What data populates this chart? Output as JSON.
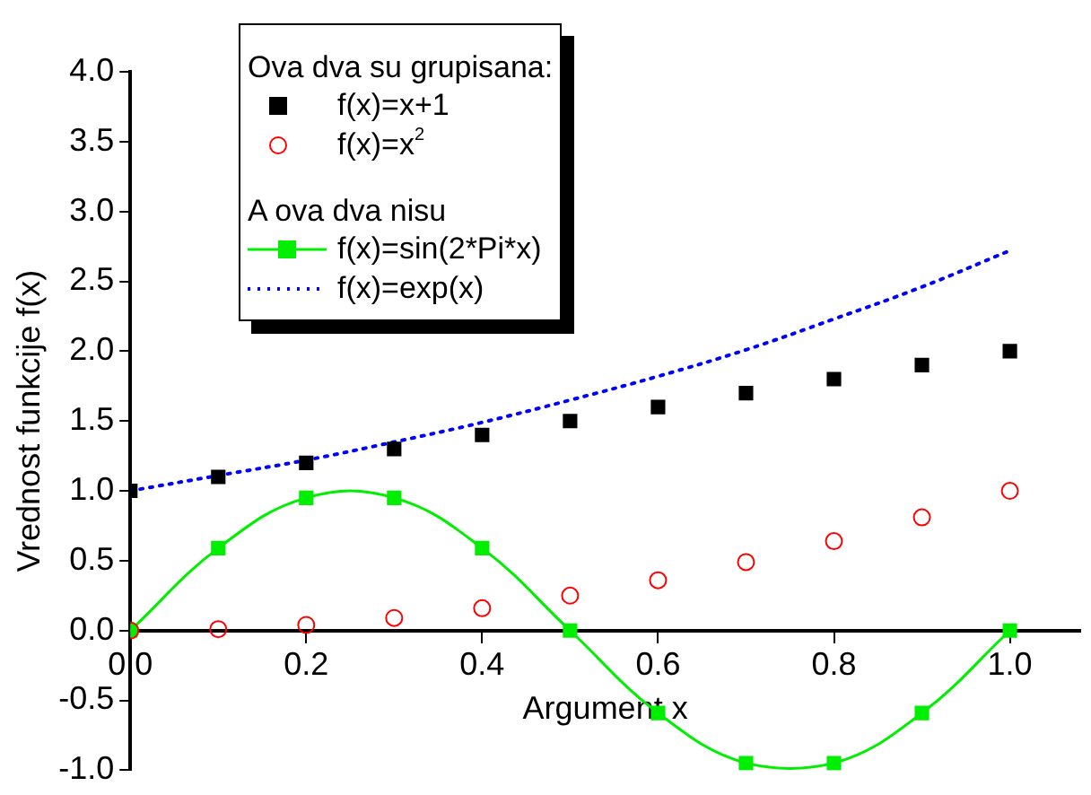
{
  "chart_data": {
    "type": "scatter",
    "xlabel": "Argument x",
    "ylabel": "Vrednost funkcije f(x)",
    "legend_title": "Ova dva su grupisana:",
    "annotations": [
      "A ova dva nisu"
    ],
    "legend": "top left",
    "grid": false,
    "x": [
      0,
      0.1,
      0.2,
      0.3,
      0.4,
      0.5,
      0.6,
      0.7,
      0.8,
      0.9,
      1.0
    ],
    "xlim": [
      0,
      1.08
    ],
    "xticks": [
      {
        "value": 0,
        "label": "0.0"
      },
      {
        "value": 0.2,
        "label": "0.2"
      },
      {
        "value": 0.4,
        "label": "0.4"
      },
      {
        "value": 0.6,
        "label": "0.6"
      },
      {
        "value": 0.8,
        "label": "0.8"
      },
      {
        "value": 1,
        "label": "1.0"
      }
    ],
    "ylim": [
      -1,
      4
    ],
    "yticks": [
      {
        "value": -1,
        "label": "-1.0"
      },
      {
        "value": -0.5,
        "label": "-0.5"
      },
      {
        "value": 0,
        "label": "0.0"
      },
      {
        "value": 0.5,
        "label": "0.5"
      },
      {
        "value": 1,
        "label": "1.0"
      },
      {
        "value": 1.5,
        "label": "1.5"
      },
      {
        "value": 2,
        "label": "2.0"
      },
      {
        "value": 2.5,
        "label": "2.5"
      },
      {
        "value": 3,
        "label": "3.0"
      },
      {
        "value": 3.5,
        "label": "3.5"
      },
      {
        "value": 4,
        "label": "4.0"
      }
    ],
    "series": [
      {
        "name": "f(x)=x+1",
        "marker": "square",
        "color": "#000000",
        "values": [
          1.0,
          1.1,
          1.2,
          1.3,
          1.4,
          1.5,
          1.6,
          1.7,
          1.8,
          1.9,
          2.0
        ]
      },
      {
        "name": "f(x)=x$^{2}$",
        "marker": "circle",
        "color": "#ff0000",
        "values": [
          0,
          0.01,
          0.04,
          0.09,
          0.16,
          0.25,
          0.36,
          0.49,
          0.64,
          0.81,
          1.0
        ]
      },
      {
        "name": "f(x)=sin(2*Pi*x)",
        "type": "line",
        "marker": "square",
        "line_style": "solid",
        "color": "#00ee00",
        "values": [
          0,
          0.59,
          0.95,
          0.95,
          0.59,
          0,
          -0.59,
          -0.95,
          -0.95,
          -0.59,
          0
        ]
      },
      {
        "name": "f(x)=exp(x)",
        "type": "line",
        "marker": "none",
        "line_style": "dotted",
        "color": "#0000ff",
        "values": [
          1,
          1.11,
          1.22,
          1.35,
          1.49,
          1.65,
          1.82,
          2.01,
          2.23,
          2.46,
          2.72
        ]
      }
    ]
  }
}
